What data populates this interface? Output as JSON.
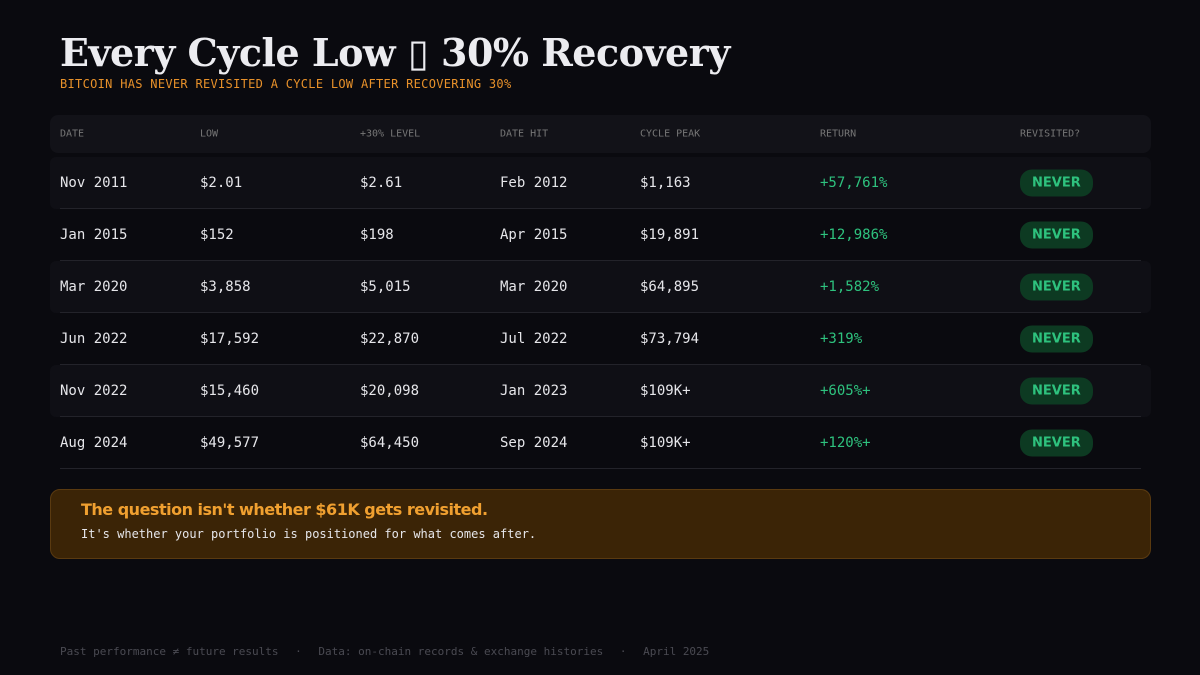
{
  "title": "Every Cycle Low ▯ 30% Recovery",
  "subtitle": "BITCOIN HAS NEVER REVISITED A CYCLE LOW AFTER RECOVERING 30%",
  "table": {
    "headers": [
      "DATE",
      "LOW",
      "+30% LEVEL",
      "DATE HIT",
      "CYCLE PEAK",
      "RETURN",
      "REVISITED?"
    ],
    "rows": [
      [
        "Nov 2011",
        "$2.01",
        "$2.61",
        "Feb 2012",
        "$1,163",
        "+57,761%",
        "NEVER"
      ],
      [
        "Jan 2015",
        "$152",
        "$198",
        "Apr 2015",
        "$19,891",
        "+12,986%",
        "NEVER"
      ],
      [
        "Mar 2020",
        "$3,858",
        "$5,015",
        "Mar 2020",
        "$64,895",
        "+1,582%",
        "NEVER"
      ],
      [
        "Jun 2022",
        "$17,592",
        "$22,870",
        "Jul 2022",
        "$73,794",
        "+319%",
        "NEVER"
      ],
      [
        "Nov 2022",
        "$15,460",
        "$20,098",
        "Jan 2023",
        "$109K+",
        "+605%+",
        "NEVER"
      ],
      [
        "Aug 2024",
        "$49,577",
        "$64,450",
        "Sep 2024",
        "$109K+",
        "+120%+",
        "NEVER"
      ]
    ]
  },
  "callout": {
    "heading": "The question isn't whether $61K gets revisited.",
    "body": "It's whether your portfolio is positioned for what comes after."
  },
  "footer": [
    "Past performance ≠ future results",
    "·",
    "Data: on-chain records & exchange histories",
    "·",
    "April 2025"
  ],
  "colors": {
    "accent": "#e8912a",
    "positive": "#2ec27e",
    "background": "#0a0a0f"
  }
}
